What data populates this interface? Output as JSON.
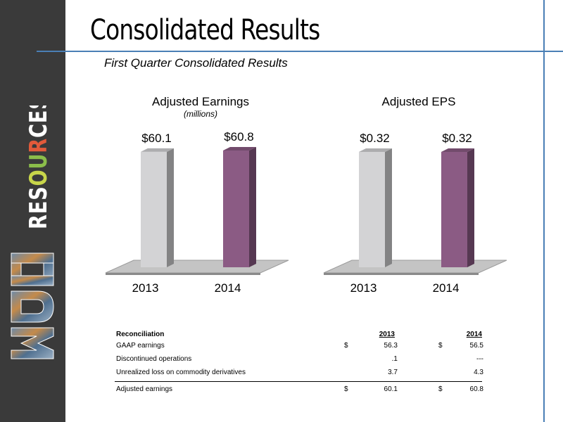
{
  "slide": {
    "title": "Consolidated Results",
    "subtitle": "First Quarter Consolidated Results",
    "sidebar_text": "RESOURCES",
    "logo_text": "MDU"
  },
  "colors": {
    "sidebar_bg": "#3a3a3a",
    "accent_line": "#4a7fb5",
    "bar_2013": "#d3d3d5",
    "bar_2014": "#8b5b84",
    "resources_O": "#c8d64a",
    "resources_U": "#8bbd4a",
    "resources_R": "#e25a3a"
  },
  "chart_data": [
    {
      "type": "bar",
      "title": "Adjusted Earnings",
      "subtitle": "(millions)",
      "categories": [
        "2013",
        "2014"
      ],
      "values": [
        60.1,
        60.8
      ],
      "data_labels": [
        "$60.1",
        "$60.8"
      ],
      "three_d": true,
      "grid": false
    },
    {
      "type": "bar",
      "title": "Adjusted EPS",
      "categories": [
        "2013",
        "2014"
      ],
      "values": [
        0.32,
        0.32
      ],
      "data_labels": [
        "$0.32",
        "$0.32"
      ],
      "three_d": true,
      "grid": false
    }
  ],
  "reconciliation": {
    "header": "Reconciliation",
    "year1": "2013",
    "year2": "2014",
    "rows": [
      {
        "label": "GAAP earnings",
        "d1": "$",
        "v1": "56.3",
        "d2": "$",
        "v2": "56.5"
      },
      {
        "label": "Discontinued operations",
        "d1": "",
        "v1": ".1",
        "d2": "",
        "v2": "---"
      },
      {
        "label": "Unrealized loss on commodity derivatives",
        "d1": "",
        "v1": "3.7",
        "d2": "",
        "v2": "4.3"
      }
    ],
    "total": {
      "label": "Adjusted earnings",
      "d1": "$",
      "v1": "60.1",
      "d2": "$",
      "v2": "60.8"
    }
  }
}
